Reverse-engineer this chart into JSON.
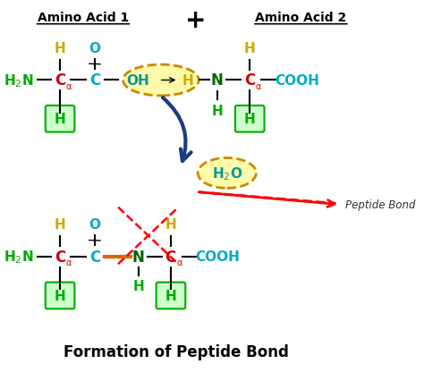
{
  "title": "Formation of Peptide Bond",
  "bg_color": "#ffffff",
  "colors": {
    "green": "#00AA00",
    "red": "#CC0000",
    "cyan": "#00AACC",
    "dark_green": "#006600",
    "gold": "#CCAA00",
    "teal": "#009999",
    "highlight_green": "#CCFFCC",
    "dark_blue": "#1a3a8a",
    "bond_orange": "#DD6600",
    "oval_edge": "#CC8800",
    "oval_face": "#FFFAAA"
  },
  "amino_acid1_label": "Amino Acid 1",
  "amino_acid2_label": "Amino Acid 2",
  "peptide_bond_label": "Peptide Bond",
  "bottom_title": "Formation of Peptide Bond"
}
